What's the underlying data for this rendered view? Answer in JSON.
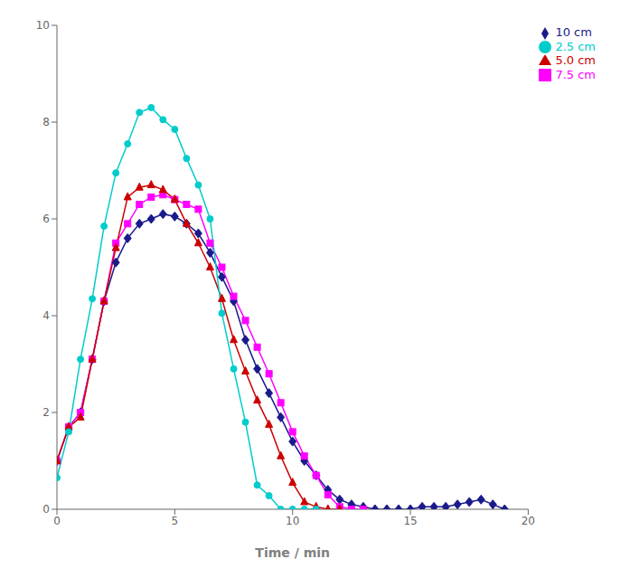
{
  "chart_data": {
    "type": "line",
    "xlabel": "Time / min",
    "xlim": [
      0,
      20
    ],
    "ylim": [
      0,
      10
    ],
    "xticks": [
      0,
      5,
      10,
      15,
      20
    ],
    "yticks": [
      0,
      2,
      4,
      6,
      8,
      10
    ],
    "legend": "upper right",
    "grid": false,
    "series": [
      {
        "name": "10 cm",
        "color": "#1a1a8c",
        "marker": "diamond",
        "x": [
          0,
          0.5,
          1,
          1.5,
          2,
          2.5,
          3,
          3.5,
          4,
          4.5,
          5,
          5.5,
          6,
          6.5,
          7,
          7.5,
          8,
          8.5,
          9,
          9.5,
          10,
          10.5,
          11,
          11.5,
          12,
          12.5,
          13,
          13.5,
          14,
          14.5,
          15,
          15.5,
          16,
          16.5,
          17,
          17.5,
          18,
          18.5,
          19
        ],
        "values": [
          1.0,
          1.7,
          2.0,
          3.1,
          4.3,
          5.1,
          5.6,
          5.9,
          6.0,
          6.1,
          6.05,
          5.9,
          5.7,
          5.3,
          4.8,
          4.3,
          3.5,
          2.9,
          2.4,
          1.9,
          1.4,
          1.0,
          0.7,
          0.4,
          0.2,
          0.1,
          0.05,
          0.0,
          0.0,
          0.0,
          0.0,
          0.05,
          0.05,
          0.05,
          0.1,
          0.15,
          0.2,
          0.1,
          0.0
        ]
      },
      {
        "name": "7.5 cm",
        "color": "#ff00ff",
        "marker": "square",
        "x": [
          0,
          0.5,
          1,
          1.5,
          2,
          2.5,
          3,
          3.5,
          4,
          4.5,
          5,
          5.5,
          6,
          6.5,
          7,
          7.5,
          8,
          8.5,
          9,
          9.5,
          10,
          10.5,
          11,
          11.5,
          12,
          12.5,
          13
        ],
        "values": [
          1.0,
          1.7,
          2.0,
          3.1,
          4.3,
          5.5,
          5.9,
          6.3,
          6.45,
          6.5,
          6.4,
          6.3,
          6.2,
          5.5,
          5.0,
          4.4,
          3.9,
          3.35,
          2.8,
          2.2,
          1.6,
          1.1,
          0.7,
          0.3,
          0.05,
          0.0,
          0.0
        ]
      },
      {
        "name": "5.0 cm",
        "color": "#cc0000",
        "marker": "triangle",
        "x": [
          0,
          0.5,
          1,
          1.5,
          2,
          2.5,
          3,
          3.5,
          4,
          4.5,
          5,
          5.5,
          6,
          6.5,
          7,
          7.5,
          8,
          8.5,
          9,
          9.5,
          10,
          10.5,
          11,
          11.5,
          12
        ],
        "values": [
          1.0,
          1.7,
          1.9,
          3.1,
          4.3,
          5.4,
          6.45,
          6.65,
          6.7,
          6.6,
          6.4,
          5.9,
          5.5,
          5.0,
          4.35,
          3.5,
          2.85,
          2.25,
          1.75,
          1.1,
          0.55,
          0.15,
          0.05,
          0.0,
          0.0
        ]
      },
      {
        "name": "2.5 cm",
        "color": "#00cccc",
        "marker": "circle",
        "x": [
          0,
          0.5,
          1,
          1.5,
          2,
          2.5,
          3,
          3.5,
          4,
          4.5,
          5,
          5.5,
          6,
          6.5,
          7,
          7.5,
          8,
          8.5,
          9,
          9.5,
          10,
          10.5,
          11
        ],
        "values": [
          0.65,
          1.6,
          3.1,
          4.35,
          5.85,
          6.95,
          7.55,
          8.2,
          8.3,
          8.05,
          7.85,
          7.25,
          6.7,
          6.0,
          4.05,
          2.9,
          1.8,
          0.5,
          0.28,
          0.0,
          0.0,
          0.0,
          0.0
        ]
      }
    ]
  }
}
